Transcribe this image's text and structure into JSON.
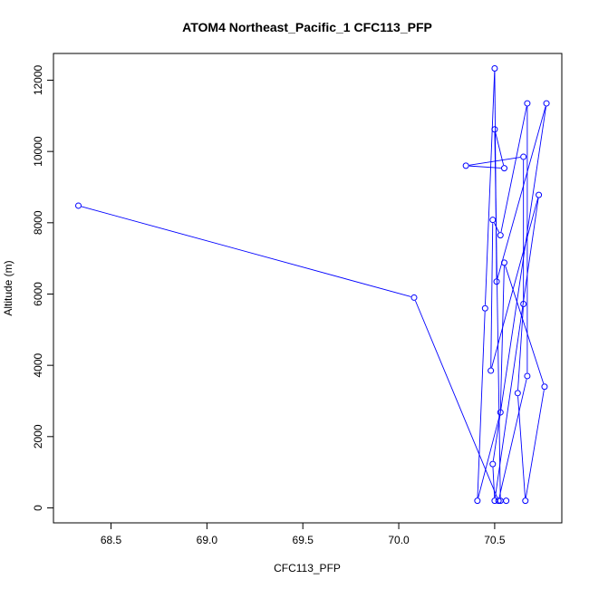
{
  "chart_data": {
    "type": "line",
    "title": "ATOM4 Northeast_Pacific_1 CFC113_PFP",
    "xlabel": "CFC113_PFP",
    "ylabel": "Altitude (m)",
    "xlim": [
      68.2,
      70.85
    ],
    "ylim": [
      -420,
      12750
    ],
    "xticks": [
      68.5,
      69.0,
      69.5,
      70.0,
      70.5
    ],
    "xtick_labels": [
      "68.5",
      "69.0",
      "69.5",
      "70.0",
      "70.5"
    ],
    "yticks": [
      0,
      2000,
      4000,
      6000,
      8000,
      10000,
      12000
    ],
    "ytick_labels": [
      "0",
      "2000",
      "4000",
      "6000",
      "8000",
      "10000",
      "12000"
    ],
    "series_color": "#0000ff",
    "marker": "open-circle",
    "grid": false,
    "series": [
      {
        "points": [
          {
            "x": 68.33,
            "y": 8480
          },
          {
            "x": 70.08,
            "y": 5900
          },
          {
            "x": 70.52,
            "y": 200
          },
          {
            "x": 70.67,
            "y": 3700
          },
          {
            "x": 70.67,
            "y": 11350
          },
          {
            "x": 70.53,
            "y": 7650
          },
          {
            "x": 70.49,
            "y": 8080
          },
          {
            "x": 70.48,
            "y": 3850
          },
          {
            "x": 70.73,
            "y": 8780
          },
          {
            "x": 70.5,
            "y": 200
          },
          {
            "x": 70.49,
            "y": 1230
          },
          {
            "x": 70.77,
            "y": 11350
          },
          {
            "x": 70.51,
            "y": 6350
          },
          {
            "x": 70.5,
            "y": 12330
          },
          {
            "x": 70.45,
            "y": 5600
          },
          {
            "x": 70.41,
            "y": 200
          },
          {
            "x": 70.53,
            "y": 2680
          },
          {
            "x": 70.55,
            "y": 6880
          },
          {
            "x": 70.76,
            "y": 3400
          },
          {
            "x": 70.66,
            "y": 200
          },
          {
            "x": 70.62,
            "y": 3220
          },
          {
            "x": 70.65,
            "y": 5720
          },
          {
            "x": 70.65,
            "y": 9850
          },
          {
            "x": 70.35,
            "y": 9600
          },
          {
            "x": 70.55,
            "y": 9530
          },
          {
            "x": 70.5,
            "y": 10620
          },
          {
            "x": 70.53,
            "y": 200
          },
          {
            "x": 70.56,
            "y": 200
          }
        ]
      }
    ]
  }
}
